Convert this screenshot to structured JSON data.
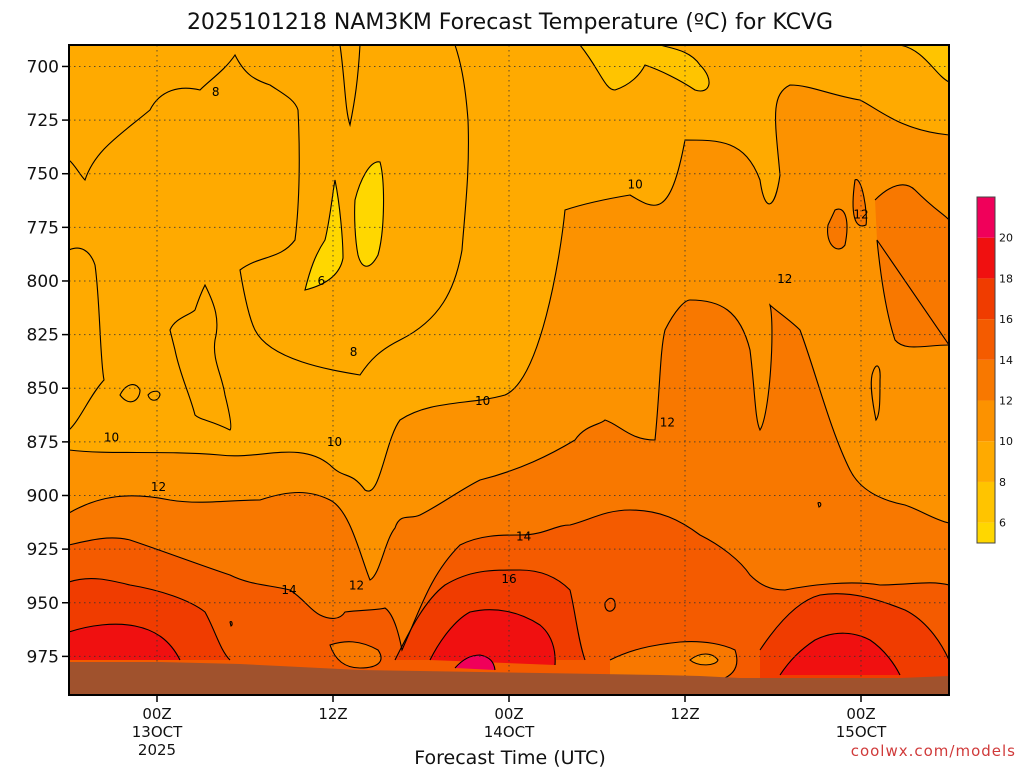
{
  "chart_data": {
    "type": "heatmap",
    "title": "2025101218 NAM3KM Forecast Temperature (ºC) for KCVG",
    "xlabel": "Forecast Time (UTC)",
    "ylabel": "",
    "y_ticks": [
      "700",
      "725",
      "750",
      "775",
      "800",
      "825",
      "850",
      "875",
      "900",
      "925",
      "950",
      "975"
    ],
    "y_values": [
      700,
      725,
      750,
      775,
      800,
      825,
      850,
      875,
      900,
      925,
      950,
      975
    ],
    "ylim": [
      690,
      993
    ],
    "x_ticks": [
      {
        "hour": 6,
        "line1": "00Z",
        "line2": "13OCT",
        "line3": "2025"
      },
      {
        "hour": 18,
        "line1": "12Z",
        "line2": "",
        "line3": ""
      },
      {
        "hour": 30,
        "line1": "00Z",
        "line2": "14OCT",
        "line3": ""
      },
      {
        "hour": 42,
        "line1": "12Z",
        "line2": "",
        "line3": ""
      },
      {
        "hour": 54,
        "line1": "00Z",
        "line2": "15OCT",
        "line3": ""
      }
    ],
    "xlim": [
      0,
      60
    ],
    "colorbar": {
      "labels": [
        "6",
        "8",
        "10",
        "12",
        "14",
        "16",
        "18",
        "20"
      ],
      "bins": [
        {
          "min": 5,
          "max": 6,
          "color": "#ffd700"
        },
        {
          "min": 6,
          "max": 8,
          "color": "#ffc400"
        },
        {
          "min": 8,
          "max": 10,
          "color": "#ffaa00"
        },
        {
          "min": 10,
          "max": 12,
          "color": "#fc9200"
        },
        {
          "min": 12,
          "max": 14,
          "color": "#f87800"
        },
        {
          "min": 14,
          "max": 16,
          "color": "#f45b00"
        },
        {
          "min": 16,
          "max": 18,
          "color": "#f03c00"
        },
        {
          "min": 18,
          "max": 20,
          "color": "#f01010"
        },
        {
          "min": 20,
          "max": 22,
          "color": "#f0005a"
        }
      ]
    },
    "contour_labels": [
      {
        "text": "8",
        "hour": 10.0,
        "p": 712
      },
      {
        "text": "6",
        "hour": 17.2,
        "p": 800
      },
      {
        "text": "8",
        "hour": 19.4,
        "p": 833
      },
      {
        "text": "10",
        "hour": 38.6,
        "p": 755
      },
      {
        "text": "12",
        "hour": 54.0,
        "p": 769
      },
      {
        "text": "12",
        "hour": 48.8,
        "p": 799
      },
      {
        "text": "10",
        "hour": 28.2,
        "p": 856
      },
      {
        "text": "12",
        "hour": 40.8,
        "p": 866
      },
      {
        "text": "10",
        "hour": 2.9,
        "p": 873
      },
      {
        "text": "10",
        "hour": 18.1,
        "p": 875
      },
      {
        "text": "12",
        "hour": 6.1,
        "p": 896
      },
      {
        "text": "14",
        "hour": 31.0,
        "p": 919
      },
      {
        "text": "16",
        "hour": 30.0,
        "p": 939
      },
      {
        "text": "14",
        "hour": 15.0,
        "p": 944
      },
      {
        "text": "12",
        "hour": 19.6,
        "p": 942
      }
    ],
    "grid": true,
    "surface_color": "#a0522d"
  },
  "credit": "coolwx.com/models"
}
